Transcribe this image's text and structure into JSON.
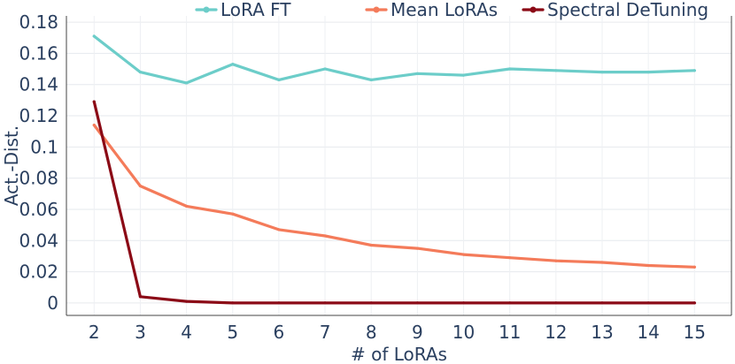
{
  "chart_data": {
    "type": "line",
    "title": "",
    "xlabel": "# of LoRAs",
    "ylabel": "Act.-Dist.",
    "x": [
      2,
      3,
      4,
      5,
      6,
      7,
      8,
      9,
      10,
      11,
      12,
      13,
      14,
      15
    ],
    "xlim": [
      1.4,
      15.8
    ],
    "ylim": [
      -0.008,
      0.184
    ],
    "yticks": [
      0,
      0.02,
      0.04,
      0.06,
      0.08,
      0.1,
      0.12,
      0.14,
      0.16,
      0.18
    ],
    "ytick_labels": [
      "0",
      "0.02",
      "0.04",
      "0.06",
      "0.08",
      "0.1",
      "0.12",
      "0.14",
      "0.16",
      "0.18"
    ],
    "grid": true,
    "legend_position": "top-center",
    "series": [
      {
        "name": "LoRA FT",
        "color": "#6ccdc9",
        "values": [
          0.171,
          0.148,
          0.141,
          0.153,
          0.143,
          0.15,
          0.143,
          0.147,
          0.146,
          0.15,
          0.149,
          0.148,
          0.148,
          0.149
        ]
      },
      {
        "name": "Mean LoRAs",
        "color": "#f47b5a",
        "values": [
          0.114,
          0.075,
          0.062,
          0.057,
          0.047,
          0.043,
          0.037,
          0.035,
          0.031,
          0.029,
          0.027,
          0.026,
          0.024,
          0.023
        ]
      },
      {
        "name": "Spectral DeTuning",
        "color": "#8b0a16",
        "values": [
          0.129,
          0.004,
          0.001,
          0.0,
          0.0,
          0.0,
          0.0,
          0.0,
          0.0,
          0.0,
          0.0,
          0.0,
          0.0,
          0.0
        ]
      }
    ]
  }
}
